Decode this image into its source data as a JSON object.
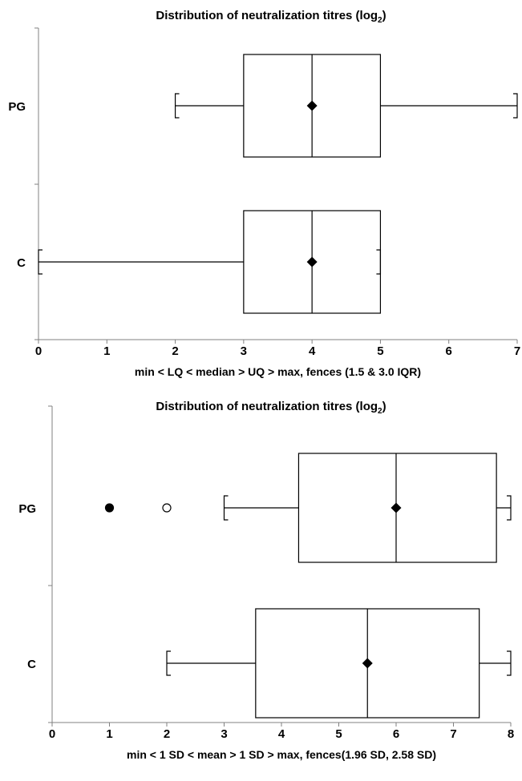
{
  "chart_data": [
    {
      "type": "boxplot",
      "title": "Distribution of neutralization titres (log",
      "title_subscript": "2",
      "title_suffix": ")",
      "xlabel": "min < LQ < median > UQ > max, fences (1.5 & 3.0 IQR)",
      "xlim": [
        0,
        7
      ],
      "xticks": [
        "0",
        "1",
        "2",
        "3",
        "4",
        "5",
        "6",
        "7"
      ],
      "series": [
        {
          "name": "PG",
          "whisker_low": 2,
          "q1": 3,
          "median": 4,
          "q3": 5,
          "whisker_high": 7,
          "marker": 4,
          "outliers": []
        },
        {
          "name": "C",
          "whisker_low": 0,
          "q1": 3,
          "median": 4,
          "q3": 5,
          "whisker_high": 5,
          "marker": 4,
          "outliers": []
        }
      ]
    },
    {
      "type": "boxplot",
      "title": "Distribution of neutralization titres (log",
      "title_subscript": "2",
      "title_suffix": ")",
      "xlabel": "min < 1 SD < mean > 1 SD > max, fences(1.96 SD, 2.58 SD)",
      "xlim": [
        0,
        8
      ],
      "xticks": [
        "0",
        "1",
        "2",
        "3",
        "4",
        "5",
        "6",
        "7",
        "8"
      ],
      "series": [
        {
          "name": "PG",
          "whisker_low": 3,
          "q1": 4.3,
          "median": 6,
          "q3": 7.75,
          "whisker_high": 8,
          "marker": 6,
          "outliers": [
            {
              "x": 1,
              "style": "filled"
            },
            {
              "x": 2,
              "style": "open"
            }
          ]
        },
        {
          "name": "C",
          "whisker_low": 2,
          "q1": 3.55,
          "median": 5.5,
          "q3": 7.45,
          "whisker_high": 8,
          "marker": 5.5,
          "outliers": []
        }
      ]
    }
  ]
}
